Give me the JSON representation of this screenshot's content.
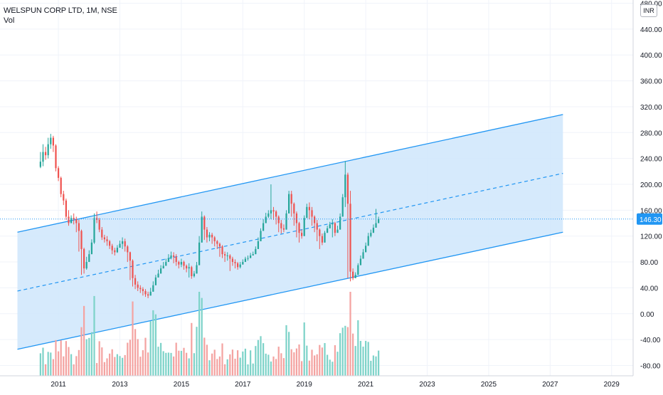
{
  "header": {
    "symbol_title": "WELSPUN CORP LTD, 1M, NSE",
    "volume_label": "Vol",
    "currency_badge": "INR"
  },
  "colors": {
    "up": "#26a69a",
    "down": "#ef5350",
    "volume_up": "#7ed3c9",
    "volume_down": "#f4a3a1",
    "channel_line": "#2196f3",
    "channel_fill": "#cfe6fb",
    "price_line": "#2196f3",
    "grid": "#f0f3fa"
  },
  "chart_data": {
    "type": "candlestick",
    "title": "WELSPUN CORP LTD, 1M, NSE",
    "y_ticks": [
      "480.00",
      "440.00",
      "400.00",
      "360.00",
      "320.00",
      "280.00",
      "240.00",
      "200.00",
      "160.00",
      "120.00",
      "80.00",
      "40.00",
      "0.00",
      "-40.00",
      "-80.00"
    ],
    "ylim": [
      -96,
      485
    ],
    "x_ticks": [
      "2011",
      "2013",
      "2015",
      "2017",
      "2019",
      "2021",
      "2023",
      "2025",
      "2027",
      "2029"
    ],
    "xlim": [
      2009.1,
      2029.7
    ],
    "grid": true,
    "last_price": "146.30",
    "monthly_ohlc": {
      "start": "2010-06",
      "close": [
        235,
        250,
        245,
        262,
        272,
        260,
        225,
        210,
        185,
        175,
        150,
        140,
        148,
        146,
        140,
        128,
        100,
        70,
        80,
        92,
        110,
        148,
        145,
        130,
        118,
        115,
        112,
        105,
        98,
        95,
        102,
        108,
        112,
        104,
        95,
        82,
        55,
        45,
        40,
        38,
        35,
        30,
        28,
        34,
        44,
        56,
        62,
        70,
        74,
        80,
        86,
        90,
        88,
        80,
        76,
        80,
        74,
        70,
        72,
        58,
        62,
        75,
        110,
        150,
        130,
        118,
        122,
        118,
        112,
        108,
        104,
        92,
        90,
        90,
        85,
        80,
        78,
        72,
        76,
        80,
        85,
        86,
        90,
        92,
        100,
        112,
        128,
        140,
        150,
        155,
        160,
        158,
        150,
        140,
        132,
        130,
        155,
        185,
        170,
        155,
        140,
        125,
        120,
        148,
        165,
        160,
        150,
        140,
        130,
        120,
        110,
        125,
        132,
        138,
        140,
        125,
        130,
        150,
        180,
        215,
        170,
        65,
        55,
        60,
        75,
        85,
        95,
        105,
        120,
        125,
        133,
        140,
        146.3
      ],
      "high": [
        250,
        262,
        258,
        272,
        278,
        275,
        262,
        228,
        212,
        190,
        178,
        160,
        152,
        155,
        150,
        145,
        130,
        102,
        88,
        98,
        115,
        155,
        158,
        148,
        134,
        122,
        120,
        114,
        108,
        102,
        106,
        113,
        118,
        116,
        106,
        96,
        84,
        60,
        50,
        44,
        41,
        38,
        34,
        40,
        50,
        60,
        68,
        75,
        80,
        85,
        92,
        96,
        95,
        92,
        82,
        85,
        82,
        76,
        78,
        74,
        66,
        80,
        120,
        158,
        152,
        134,
        126,
        125,
        120,
        114,
        110,
        106,
        96,
        95,
        92,
        88,
        84,
        80,
        80,
        84,
        88,
        90,
        94,
        96,
        104,
        118,
        132,
        146,
        156,
        160,
        200,
        165,
        160,
        152,
        145,
        138,
        160,
        190,
        190,
        172,
        158,
        142,
        130,
        152,
        170,
        172,
        165,
        152,
        145,
        132,
        124,
        128,
        136,
        142,
        146,
        142,
        136,
        155,
        185,
        236,
        218,
        190,
        70,
        64,
        78,
        90,
        100,
        110,
        125,
        130,
        138,
        162,
        150
      ],
      "low": [
        225,
        228,
        238,
        240,
        255,
        250,
        220,
        205,
        180,
        168,
        145,
        136,
        140,
        138,
        126,
        96,
        60,
        62,
        68,
        80,
        92,
        108,
        140,
        126,
        114,
        110,
        105,
        100,
        92,
        90,
        94,
        102,
        100,
        96,
        80,
        52,
        42,
        38,
        35,
        32,
        28,
        26,
        24,
        30,
        40,
        52,
        58,
        66,
        70,
        76,
        82,
        84,
        78,
        74,
        70,
        72,
        68,
        64,
        56,
        54,
        56,
        70,
        104,
        126,
        114,
        110,
        112,
        108,
        104,
        100,
        88,
        86,
        80,
        82,
        66,
        74,
        70,
        68,
        70,
        76,
        80,
        82,
        86,
        90,
        96,
        106,
        120,
        136,
        144,
        148,
        146,
        145,
        138,
        126,
        124,
        126,
        150,
        166,
        150,
        136,
        118,
        110,
        116,
        142,
        154,
        146,
        136,
        126,
        112,
        100,
        106,
        116,
        126,
        132,
        118,
        120,
        126,
        146,
        172,
        165,
        55,
        50,
        52,
        56,
        70,
        82,
        90,
        102,
        112,
        118,
        128,
        138,
        142
      ]
    },
    "volume_note": "secondary volume bars (no separate scale), up/down colored",
    "channel": {
      "x_start": "2009-09",
      "x_end": "2027-06",
      "upper_start": 126,
      "upper_end": 308,
      "mid_start": 35,
      "mid_end": 217,
      "lower_start": -55,
      "lower_end": 126,
      "dashed_mid": true
    },
    "last_price_line": 146.3
  }
}
